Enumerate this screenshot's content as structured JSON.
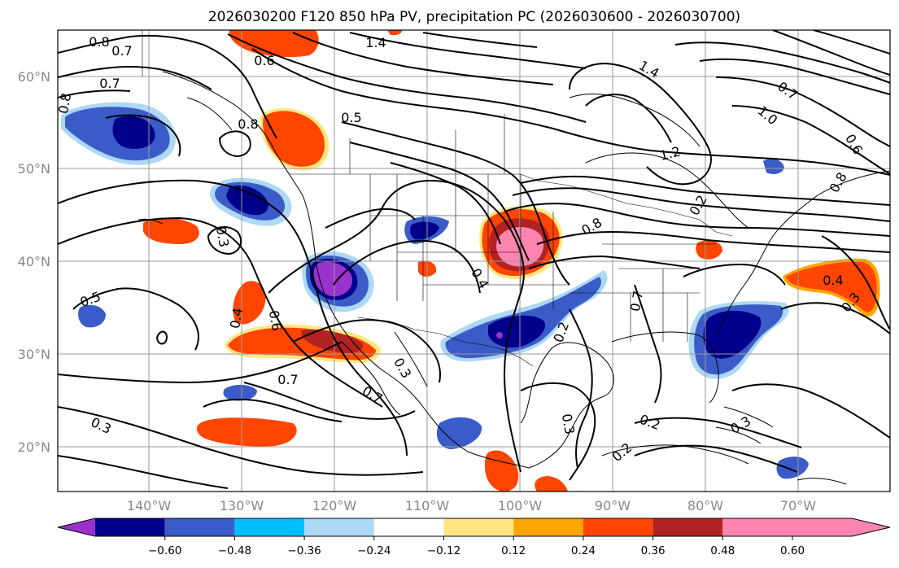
{
  "title": "2026030200 F120 850 hPa PV, precipitation PC (2026030600 - 2026030700)",
  "map": {
    "lat_labels": [
      "60°N",
      "50°N",
      "40°N",
      "30°N",
      "20°N"
    ],
    "lon_labels": [
      "140°W",
      "130°W",
      "120°W",
      "110°W",
      "100°W",
      "90°W",
      "80°W",
      "70°W"
    ]
  },
  "colorbar": {
    "ticks": [
      "−0.60",
      "−0.48",
      "−0.36",
      "−0.24",
      "−0.12",
      "0.12",
      "0.24",
      "0.36",
      "0.48",
      "0.60"
    ],
    "colors": [
      "#9932CC",
      "#00008B",
      "#3B5CC8",
      "#00BFFF",
      "#ADD8F6",
      "#FFFFFF",
      "#FFE680",
      "#FFA500",
      "#FF4500",
      "#B22222",
      "#FF85B0"
    ]
  },
  "contour_labels": [
    "0.8",
    "0.7",
    "0.7",
    "0.8",
    "0.6",
    "1.4",
    "0.5",
    "0.8",
    "1.4",
    "0.7",
    "1.0",
    "0.6",
    "1.2",
    "0.8",
    "0.3",
    "0.8",
    "0.5",
    "0.4",
    "0.6",
    "0.7",
    "0.7",
    "0.3",
    "0.3",
    "0.2",
    "0.7",
    "0.3",
    "0.2",
    "0.2",
    "0.4",
    "0.3",
    "0.3",
    "0.2",
    "0.4"
  ]
}
